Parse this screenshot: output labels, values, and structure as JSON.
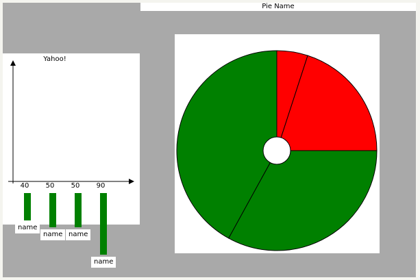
{
  "chart_data": [
    {
      "type": "pie",
      "title": "Pie Name",
      "slices": [
        {
          "value": 5,
          "color": "#ff0000"
        },
        {
          "value": 20,
          "color": "#ff0000"
        },
        {
          "value": 33,
          "color": "#008000"
        },
        {
          "value": 42,
          "color": "#008000"
        }
      ],
      "donut_hole": true
    },
    {
      "type": "bar",
      "title": "Yahoo!",
      "values": [
        40,
        50,
        50,
        90
      ],
      "value_labels": [
        "40",
        "50",
        "50",
        "90"
      ],
      "categories": [
        "name",
        "name",
        "name",
        "name"
      ],
      "bar_color": "#008000"
    }
  ]
}
